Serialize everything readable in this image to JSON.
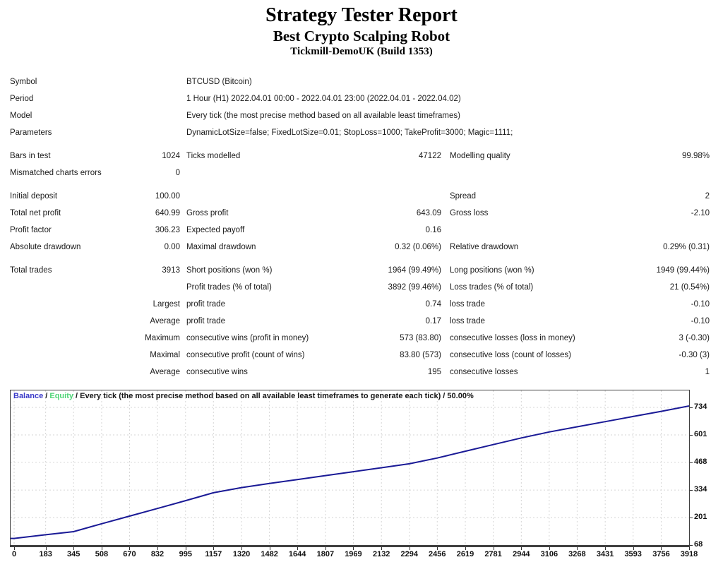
{
  "header": {
    "title": "Strategy Tester Report",
    "subtitle": "Best Crypto Scalping Robot",
    "account": "Tickmill-DemoUK (Build 1353)"
  },
  "info_rows": [
    {
      "label": "Symbol",
      "value": "BTCUSD (Bitcoin)"
    },
    {
      "label": "Period",
      "value": "1 Hour (H1) 2022.04.01 00:00 - 2022.04.01 23:00 (2022.04.01 - 2022.04.02)"
    },
    {
      "label": "Model",
      "value": "Every tick (the most precise method based on all available least timeframes)"
    },
    {
      "label": "Parameters",
      "value": "DynamicLotSize=false; FixedLotSize=0.01; StopLoss=1000; TakeProfit=3000; Magic=1111;"
    }
  ],
  "stat_groups": [
    {
      "rows": [
        [
          "Bars in test",
          "1024",
          "Ticks modelled",
          "47122",
          "Modelling quality",
          "99.98%"
        ],
        [
          "Mismatched charts errors",
          "0",
          "",
          "",
          "",
          ""
        ]
      ]
    },
    {
      "rows": [
        [
          "Initial deposit",
          "100.00",
          "",
          "",
          "Spread",
          "2"
        ],
        [
          "Total net profit",
          "640.99",
          "Gross profit",
          "643.09",
          "Gross loss",
          "-2.10"
        ],
        [
          "Profit factor",
          "306.23",
          "Expected payoff",
          "0.16",
          "",
          ""
        ],
        [
          "Absolute drawdown",
          "0.00",
          "Maximal drawdown",
          "0.32 (0.06%)",
          "Relative drawdown",
          "0.29% (0.31)"
        ]
      ]
    },
    {
      "rows": [
        [
          "Total trades",
          "3913",
          "Short positions (won %)",
          "1964 (99.49%)",
          "Long positions (won %)",
          "1949 (99.44%)"
        ],
        [
          "",
          "",
          "Profit trades (% of total)",
          "3892 (99.46%)",
          "Loss trades (% of total)",
          "21 (0.54%)"
        ],
        [
          "",
          "Largest",
          "profit trade",
          "0.74",
          "loss trade",
          "-0.10"
        ],
        [
          "",
          "Average",
          "profit trade",
          "0.17",
          "loss trade",
          "-0.10"
        ],
        [
          "",
          "Maximum",
          "consecutive wins (profit in money)",
          "573 (83.80)",
          "consecutive losses (loss in money)",
          "3 (-0.30)"
        ],
        [
          "",
          "Maximal",
          "consecutive profit (count of wins)",
          "83.80 (573)",
          "consecutive loss (count of losses)",
          "-0.30 (3)"
        ],
        [
          "",
          "Average",
          "consecutive wins",
          "195",
          "consecutive losses",
          "1"
        ]
      ]
    }
  ],
  "chart_data": {
    "type": "line",
    "legend": {
      "balance": "Balance",
      "sep": " / ",
      "equity": "Equity",
      "rest": " / Every tick (the most precise method based on all available least timeframes to generate each tick) / 50.00%"
    },
    "colors": {
      "balance_line": "#1a1a96",
      "legend_balance": "#3a3ac8",
      "legend_equity": "#4ed476",
      "grid": "#d6d6d6",
      "border": "#3f3f3f",
      "axis_text": "#111111"
    },
    "x_ticks": [
      0,
      183,
      345,
      508,
      670,
      832,
      995,
      1157,
      1320,
      1482,
      1644,
      1807,
      1969,
      2132,
      2294,
      2456,
      2619,
      2781,
      2944,
      3106,
      3268,
      3431,
      3593,
      3756,
      3918
    ],
    "y_ticks": [
      734,
      601,
      468,
      334,
      201,
      68
    ],
    "xlim": [
      0,
      3918
    ],
    "ylim": [
      68,
      816
    ],
    "grid": "dashed",
    "legend_position": "top-left",
    "series": [
      {
        "name": "Balance",
        "x": [
          0,
          183,
          345,
          508,
          670,
          832,
          995,
          1157,
          1320,
          1482,
          1644,
          1807,
          1969,
          2132,
          2294,
          2456,
          2619,
          2781,
          2944,
          3106,
          3268,
          3431,
          3593,
          3756,
          3918
        ],
        "y": [
          100,
          118,
          133,
          171,
          208,
          245,
          283,
          321,
          346,
          366,
          385,
          404,
          423,
          442,
          461,
          489,
          522,
          554,
          586,
          615,
          640,
          665,
          690,
          715,
          741
        ]
      }
    ]
  }
}
